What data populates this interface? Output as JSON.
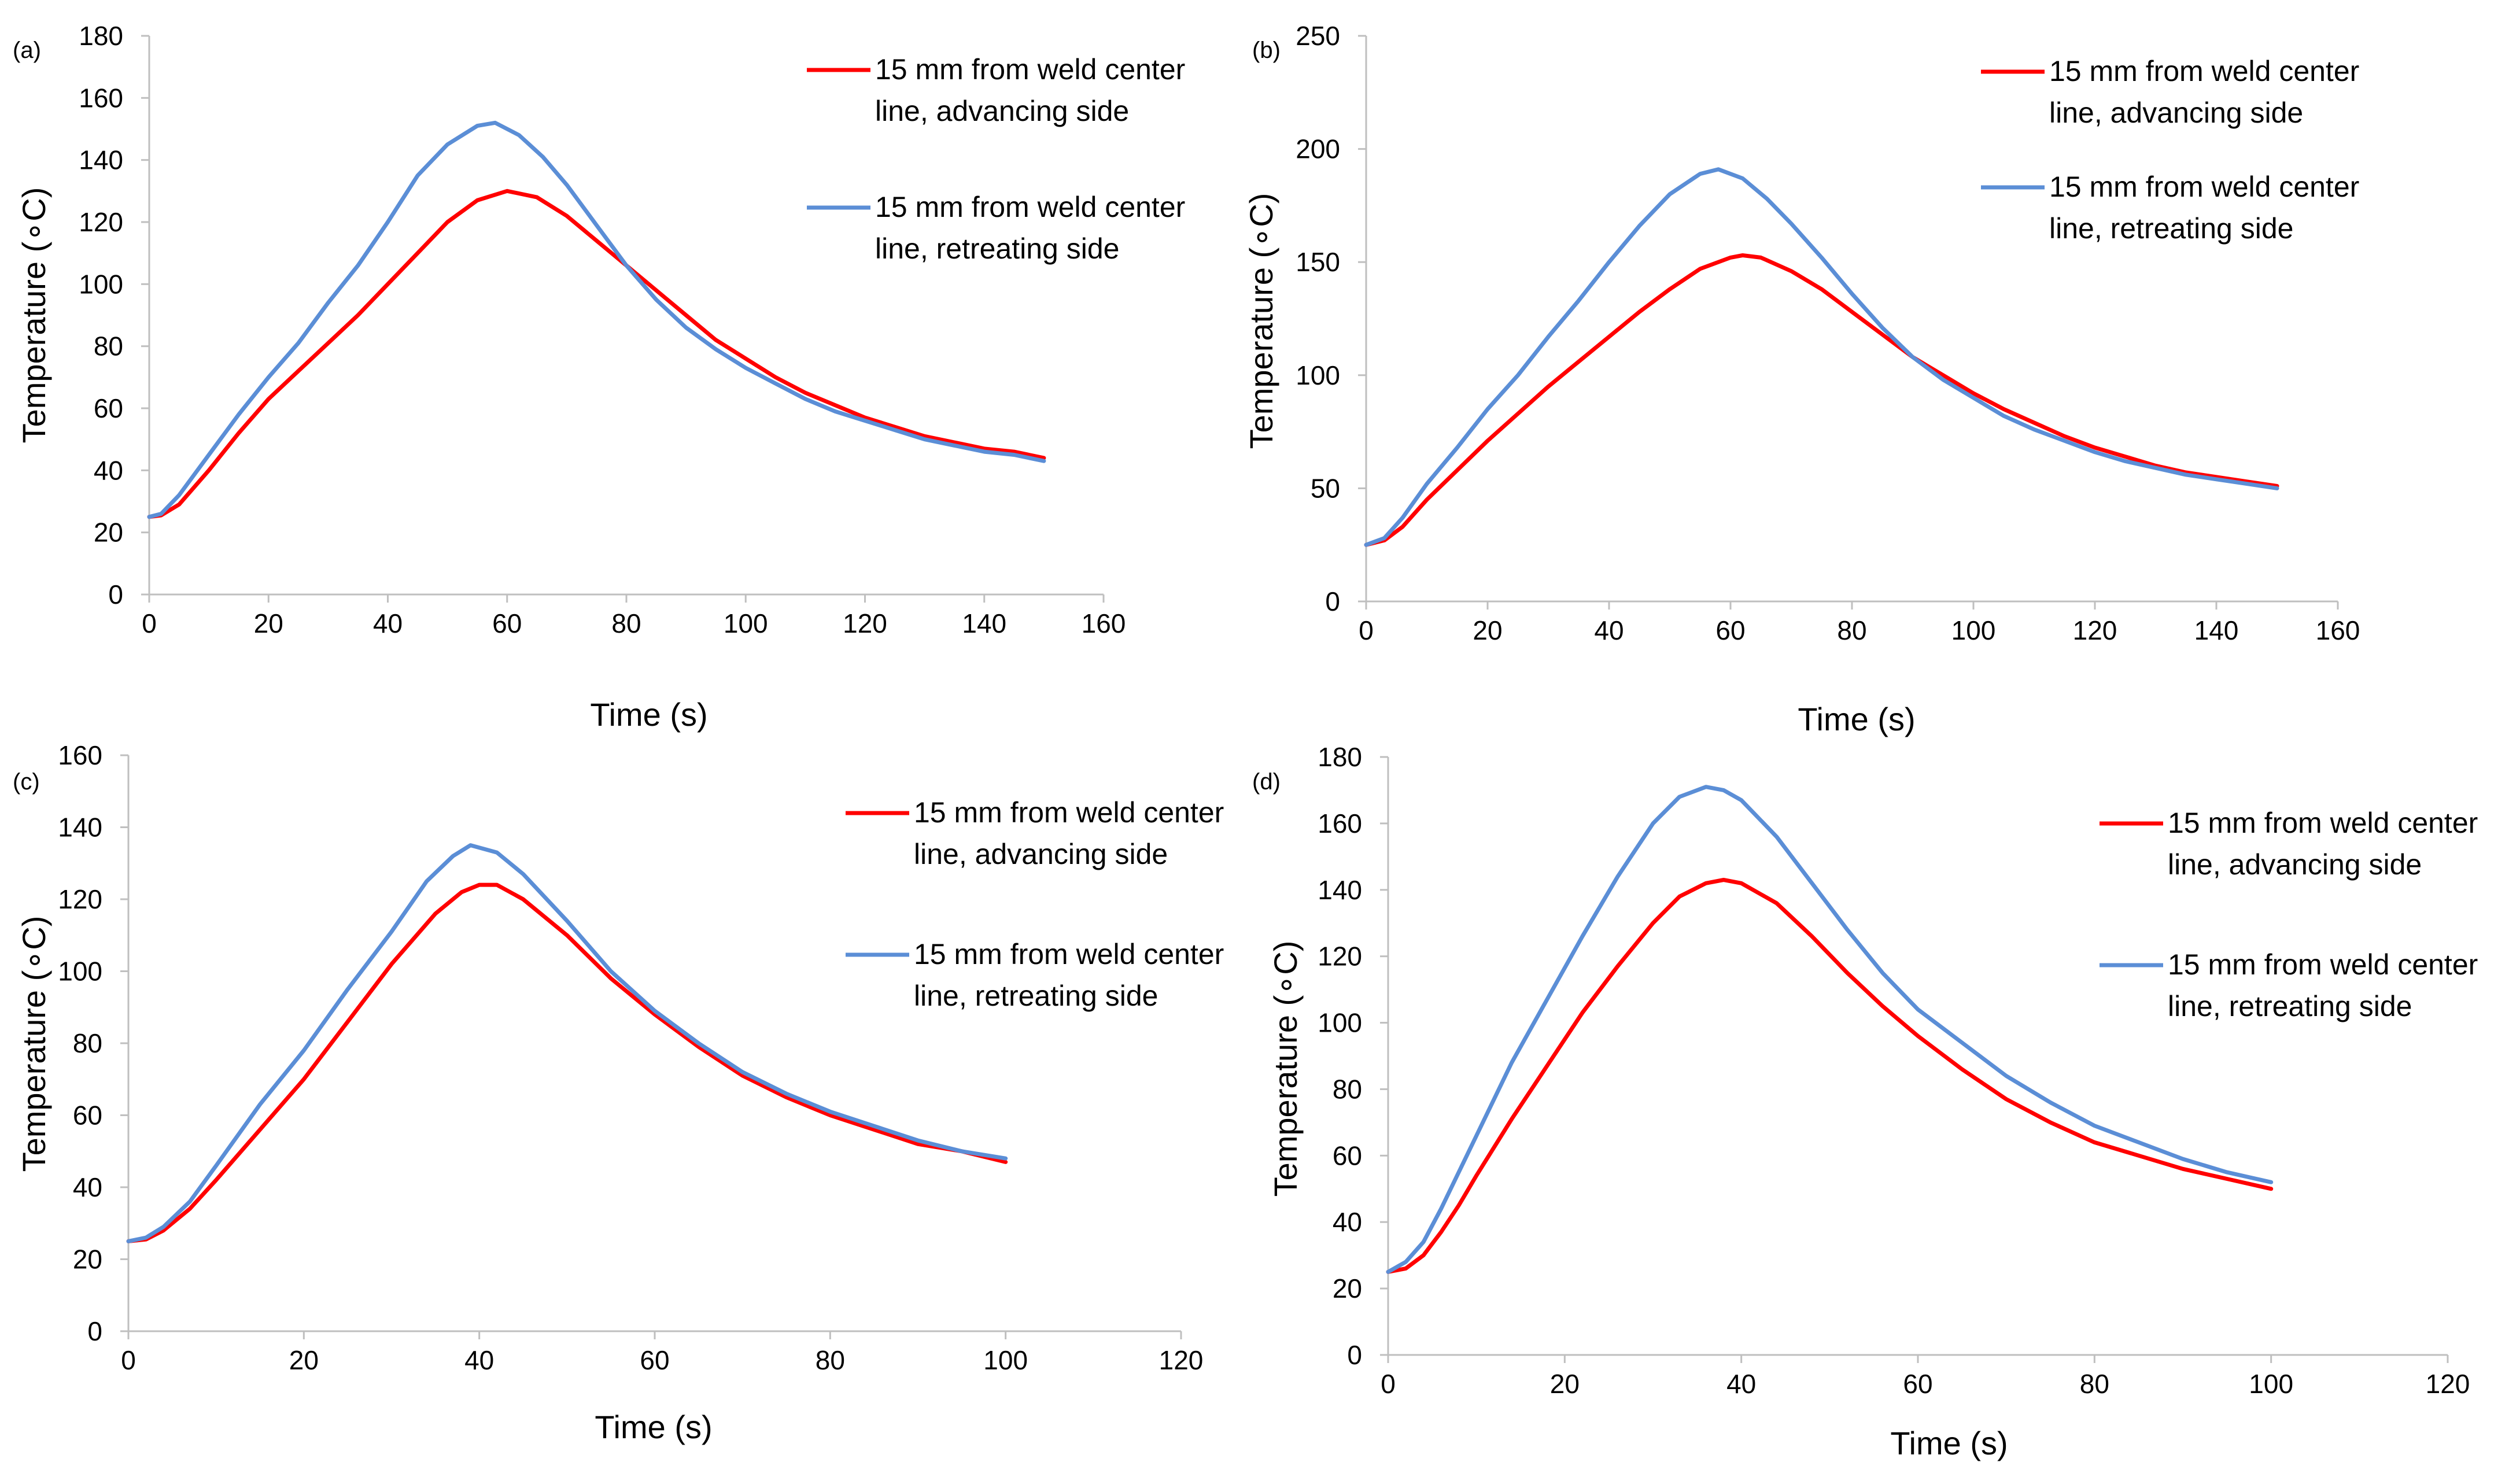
{
  "figure": {
    "colors": {
      "advancing": "#ff0000",
      "retreating": "#5b8ed6",
      "axis": "#bfbfbf",
      "text": "#000000"
    }
  },
  "chart_data": [
    {
      "panel": "(a)",
      "type": "line",
      "xlabel": "Time (s)",
      "ylabel": "Temperature (∘C)",
      "xlim": [
        0,
        160
      ],
      "ylim": [
        0,
        180
      ],
      "xticks": [
        "0",
        "20",
        "40",
        "60",
        "80",
        "100",
        "120",
        "140",
        "160"
      ],
      "yticks": [
        "0",
        "20",
        "40",
        "60",
        "80",
        "100",
        "120",
        "140",
        "160",
        "180"
      ],
      "grid": false,
      "legend": "top-right",
      "series": [
        {
          "key": "advancing",
          "name_line1": "15 mm from weld center",
          "name_line2": "line, advancing side",
          "color": "#ff0000",
          "points": [
            [
              0,
              25
            ],
            [
              2,
              25.5
            ],
            [
              5,
              29
            ],
            [
              10,
              40
            ],
            [
              15,
              52
            ],
            [
              20,
              63
            ],
            [
              25,
              72
            ],
            [
              30,
              81
            ],
            [
              35,
              90
            ],
            [
              40,
              100
            ],
            [
              45,
              110
            ],
            [
              50,
              120
            ],
            [
              55,
              127
            ],
            [
              60,
              130
            ],
            [
              65,
              128
            ],
            [
              70,
              122
            ],
            [
              75,
              114
            ],
            [
              80,
              106
            ],
            [
              85,
              98
            ],
            [
              90,
              90
            ],
            [
              95,
              82
            ],
            [
              100,
              76
            ],
            [
              105,
              70
            ],
            [
              110,
              65
            ],
            [
              115,
              61
            ],
            [
              120,
              57
            ],
            [
              125,
              54
            ],
            [
              130,
              51
            ],
            [
              135,
              49
            ],
            [
              140,
              47
            ],
            [
              145,
              46
            ],
            [
              150,
              44
            ]
          ]
        },
        {
          "key": "retreating",
          "name_line1": "15 mm from weld center",
          "name_line2": "line, retreating side",
          "color": "#5b8ed6",
          "points": [
            [
              0,
              25
            ],
            [
              2,
              26
            ],
            [
              5,
              32
            ],
            [
              10,
              45
            ],
            [
              15,
              58
            ],
            [
              20,
              70
            ],
            [
              25,
              81
            ],
            [
              30,
              94
            ],
            [
              35,
              106
            ],
            [
              40,
              120
            ],
            [
              45,
              135
            ],
            [
              50,
              145
            ],
            [
              55,
              151
            ],
            [
              58,
              152
            ],
            [
              62,
              148
            ],
            [
              66,
              141
            ],
            [
              70,
              132
            ],
            [
              75,
              119
            ],
            [
              80,
              106
            ],
            [
              85,
              95
            ],
            [
              90,
              86
            ],
            [
              95,
              79
            ],
            [
              100,
              73
            ],
            [
              105,
              68
            ],
            [
              110,
              63
            ],
            [
              115,
              59
            ],
            [
              120,
              56
            ],
            [
              125,
              53
            ],
            [
              130,
              50
            ],
            [
              135,
              48
            ],
            [
              140,
              46
            ],
            [
              145,
              45
            ],
            [
              150,
              43
            ]
          ]
        }
      ]
    },
    {
      "panel": "(b)",
      "type": "line",
      "xlabel": "Time (s)",
      "ylabel": "Temperature (∘C)",
      "xlim": [
        0,
        160
      ],
      "ylim": [
        0,
        250
      ],
      "xticks": [
        "0",
        "20",
        "40",
        "60",
        "80",
        "100",
        "120",
        "140",
        "160"
      ],
      "yticks": [
        "0",
        "50",
        "100",
        "150",
        "200",
        "250"
      ],
      "grid": false,
      "legend": "top-right",
      "series": [
        {
          "key": "advancing",
          "name_line1": "15 mm from weld center",
          "name_line2": "line, advancing side",
          "color": "#ff0000",
          "points": [
            [
              0,
              25
            ],
            [
              3,
              27
            ],
            [
              6,
              33
            ],
            [
              10,
              45
            ],
            [
              15,
              58
            ],
            [
              20,
              71
            ],
            [
              25,
              83
            ],
            [
              30,
              95
            ],
            [
              35,
              106
            ],
            [
              40,
              117
            ],
            [
              45,
              128
            ],
            [
              50,
              138
            ],
            [
              55,
              147
            ],
            [
              60,
              152
            ],
            [
              62,
              153
            ],
            [
              65,
              152
            ],
            [
              70,
              146
            ],
            [
              75,
              138
            ],
            [
              80,
              128
            ],
            [
              85,
              118
            ],
            [
              90,
              108
            ],
            [
              95,
              100
            ],
            [
              100,
              92
            ],
            [
              105,
              85
            ],
            [
              110,
              79
            ],
            [
              115,
              73
            ],
            [
              120,
              68
            ],
            [
              125,
              64
            ],
            [
              130,
              60
            ],
            [
              135,
              57
            ],
            [
              140,
              55
            ],
            [
              145,
              53
            ],
            [
              150,
              51
            ]
          ]
        },
        {
          "key": "retreating",
          "name_line1": "15 mm from weld center",
          "name_line2": "line, retreating side",
          "color": "#5b8ed6",
          "points": [
            [
              0,
              25
            ],
            [
              3,
              28
            ],
            [
              6,
              37
            ],
            [
              10,
              52
            ],
            [
              15,
              68
            ],
            [
              20,
              85
            ],
            [
              25,
              100
            ],
            [
              30,
              117
            ],
            [
              35,
              133
            ],
            [
              40,
              150
            ],
            [
              45,
              166
            ],
            [
              50,
              180
            ],
            [
              55,
              189
            ],
            [
              58,
              191
            ],
            [
              62,
              187
            ],
            [
              66,
              178
            ],
            [
              70,
              167
            ],
            [
              75,
              152
            ],
            [
              80,
              136
            ],
            [
              85,
              121
            ],
            [
              90,
              108
            ],
            [
              95,
              98
            ],
            [
              100,
              90
            ],
            [
              105,
              82
            ],
            [
              110,
              76
            ],
            [
              115,
              71
            ],
            [
              120,
              66
            ],
            [
              125,
              62
            ],
            [
              130,
              59
            ],
            [
              135,
              56
            ],
            [
              140,
              54
            ],
            [
              145,
              52
            ],
            [
              150,
              50
            ]
          ]
        }
      ]
    },
    {
      "panel": "(c)",
      "type": "line",
      "xlabel": "Time (s)",
      "ylabel": "Temperature (∘C)",
      "xlim": [
        0,
        120
      ],
      "ylim": [
        0,
        160
      ],
      "xticks": [
        "0",
        "20",
        "40",
        "60",
        "80",
        "100",
        "120"
      ],
      "yticks": [
        "0",
        "20",
        "40",
        "60",
        "80",
        "100",
        "120",
        "140",
        "160"
      ],
      "grid": false,
      "legend": "top-right",
      "series": [
        {
          "key": "advancing",
          "name_line1": "15 mm from weld center",
          "name_line2": "line, advancing side",
          "color": "#ff0000",
          "points": [
            [
              0,
              25
            ],
            [
              2,
              25.5
            ],
            [
              4,
              28
            ],
            [
              7,
              34
            ],
            [
              10,
              42
            ],
            [
              15,
              56
            ],
            [
              20,
              70
            ],
            [
              25,
              86
            ],
            [
              30,
              102
            ],
            [
              35,
              116
            ],
            [
              38,
              122
            ],
            [
              40,
              124
            ],
            [
              42,
              124
            ],
            [
              45,
              120
            ],
            [
              50,
              110
            ],
            [
              55,
              98
            ],
            [
              60,
              88
            ],
            [
              65,
              79
            ],
            [
              70,
              71
            ],
            [
              75,
              65
            ],
            [
              80,
              60
            ],
            [
              85,
              56
            ],
            [
              90,
              52
            ],
            [
              95,
              50
            ],
            [
              100,
              47
            ]
          ]
        },
        {
          "key": "retreating",
          "name_line1": "15 mm from weld center",
          "name_line2": "line, retreating side",
          "color": "#5b8ed6",
          "points": [
            [
              0,
              25
            ],
            [
              2,
              26
            ],
            [
              4,
              29
            ],
            [
              7,
              36
            ],
            [
              10,
              46
            ],
            [
              15,
              63
            ],
            [
              20,
              78
            ],
            [
              25,
              95
            ],
            [
              30,
              111
            ],
            [
              34,
              125
            ],
            [
              37,
              132
            ],
            [
              39,
              135
            ],
            [
              42,
              133
            ],
            [
              45,
              127
            ],
            [
              50,
              114
            ],
            [
              55,
              100
            ],
            [
              60,
              89
            ],
            [
              65,
              80
            ],
            [
              70,
              72
            ],
            [
              75,
              66
            ],
            [
              80,
              61
            ],
            [
              85,
              57
            ],
            [
              90,
              53
            ],
            [
              95,
              50
            ],
            [
              100,
              48
            ]
          ]
        }
      ]
    },
    {
      "panel": "(d)",
      "type": "line",
      "xlabel": "Time (s)",
      "ylabel": "Temperature (∘C)",
      "xlim": [
        0,
        120
      ],
      "ylim": [
        0,
        180
      ],
      "xticks": [
        "0",
        "20",
        "40",
        "60",
        "80",
        "100",
        "120"
      ],
      "yticks": [
        "0",
        "20",
        "40",
        "60",
        "80",
        "100",
        "120",
        "140",
        "160",
        "180"
      ],
      "grid": false,
      "legend": "top-right",
      "series": [
        {
          "key": "advancing",
          "name_line1": "15 mm from weld center",
          "name_line2": "line, advancing side",
          "color": "#ff0000",
          "points": [
            [
              0,
              25
            ],
            [
              2,
              26
            ],
            [
              4,
              30
            ],
            [
              6,
              37
            ],
            [
              8,
              45
            ],
            [
              10,
              54
            ],
            [
              14,
              71
            ],
            [
              18,
              87
            ],
            [
              22,
              103
            ],
            [
              26,
              117
            ],
            [
              30,
              130
            ],
            [
              33,
              138
            ],
            [
              36,
              142
            ],
            [
              38,
              143
            ],
            [
              40,
              142
            ],
            [
              44,
              136
            ],
            [
              48,
              126
            ],
            [
              52,
              115
            ],
            [
              56,
              105
            ],
            [
              60,
              96
            ],
            [
              65,
              86
            ],
            [
              70,
              77
            ],
            [
              75,
              70
            ],
            [
              80,
              64
            ],
            [
              85,
              60
            ],
            [
              90,
              56
            ],
            [
              95,
              53
            ],
            [
              100,
              50
            ]
          ]
        },
        {
          "key": "retreating",
          "name_line1": "15 mm from weld center",
          "name_line2": "line, retreating side",
          "color": "#5b8ed6",
          "points": [
            [
              0,
              25
            ],
            [
              2,
              28
            ],
            [
              4,
              34
            ],
            [
              6,
              44
            ],
            [
              8,
              55
            ],
            [
              10,
              66
            ],
            [
              14,
              88
            ],
            [
              18,
              107
            ],
            [
              22,
              126
            ],
            [
              26,
              144
            ],
            [
              30,
              160
            ],
            [
              33,
              168
            ],
            [
              36,
              171
            ],
            [
              38,
              170
            ],
            [
              40,
              167
            ],
            [
              44,
              156
            ],
            [
              48,
              142
            ],
            [
              52,
              128
            ],
            [
              56,
              115
            ],
            [
              60,
              104
            ],
            [
              65,
              94
            ],
            [
              70,
              84
            ],
            [
              75,
              76
            ],
            [
              80,
              69
            ],
            [
              85,
              64
            ],
            [
              90,
              59
            ],
            [
              95,
              55
            ],
            [
              100,
              52
            ]
          ]
        }
      ]
    }
  ]
}
